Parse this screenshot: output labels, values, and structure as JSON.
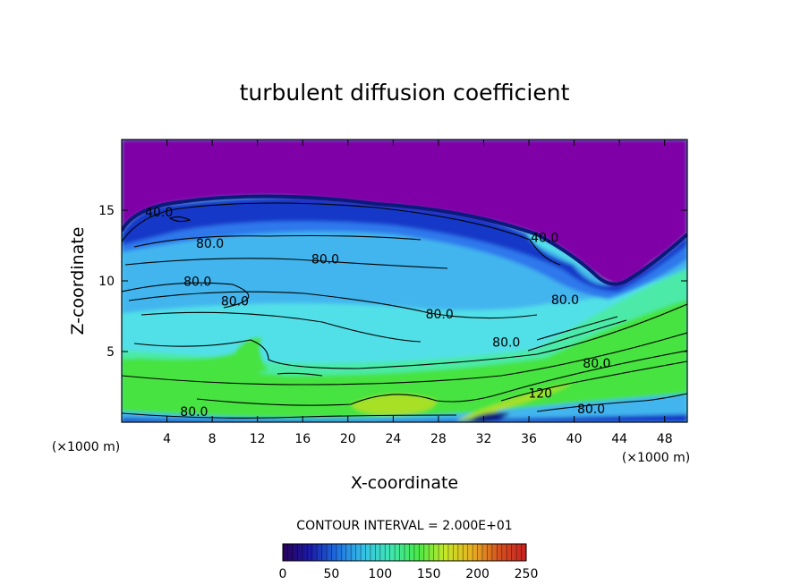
{
  "chart_data": {
    "type": "heatmap",
    "title": "turbulent diffusion coefficient",
    "xlabel": "X-coordinate",
    "ylabel": "Z-coordinate",
    "x_unit_left": "(×1000 m)",
    "x_unit_right": "(×1000 m)",
    "xlim": [
      0,
      50
    ],
    "ylim": [
      0,
      20
    ],
    "x_ticks": [
      4,
      8,
      12,
      16,
      20,
      24,
      28,
      32,
      36,
      40,
      44,
      48
    ],
    "y_ticks": [
      5,
      10,
      15
    ],
    "contour_interval_text": "CONTOUR INTERVAL = 2.000E+01",
    "contour_labels": [
      {
        "text": "40.0",
        "x": 3.3,
        "z": 14.8
      },
      {
        "text": "80.0",
        "x": 7.8,
        "z": 12.6
      },
      {
        "text": "80.0",
        "x": 18.0,
        "z": 11.5
      },
      {
        "text": "80.0",
        "x": 6.7,
        "z": 9.9
      },
      {
        "text": "80.0",
        "x": 10.0,
        "z": 8.5
      },
      {
        "text": "40.0",
        "x": 37.4,
        "z": 13.0
      },
      {
        "text": "80.0",
        "x": 39.2,
        "z": 8.6
      },
      {
        "text": "80.0",
        "x": 28.1,
        "z": 7.6
      },
      {
        "text": "80.0",
        "x": 34.0,
        "z": 5.6
      },
      {
        "text": "80.0",
        "x": 42.0,
        "z": 4.1
      },
      {
        "text": "120",
        "x": 37.0,
        "z": 2.0
      },
      {
        "text": "80.0",
        "x": 6.4,
        "z": 0.7
      },
      {
        "text": "80.0",
        "x": 41.5,
        "z": 0.9
      }
    ],
    "colorbar": {
      "min": 0,
      "max": 250,
      "tick_labels": [
        "0",
        "50",
        "100",
        "150",
        "200",
        "250"
      ],
      "colormap": [
        "#2a005a",
        "#1a1aa8",
        "#1f6fe0",
        "#35c2e6",
        "#3ee6b0",
        "#48e848",
        "#c6e826",
        "#e8b020",
        "#d45020",
        "#c82020"
      ]
    },
    "colors": {
      "above_cloud": "#8000a8",
      "deep_blue": "#1538c8",
      "medium_blue": "#2f78ec",
      "sky_blue": "#43b5ee",
      "cyan": "#52e0e8",
      "aqua_green": "#4ceaa8",
      "green": "#47e33f",
      "yellow_green": "#a8e028",
      "dark_band": "#0a1a7a"
    },
    "grid": false
  }
}
